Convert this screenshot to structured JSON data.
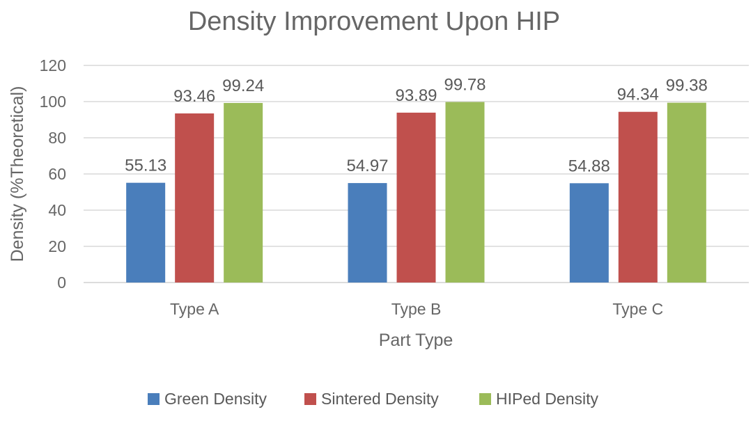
{
  "chart_data": {
    "type": "bar",
    "title": "Density Improvement Upon HIP",
    "xlabel": "Part Type",
    "ylabel": "Density (%Theoretical)",
    "ylim": [
      0,
      120
    ],
    "yticks": [
      0,
      20,
      40,
      60,
      80,
      100,
      120
    ],
    "grid": true,
    "legend_position": "bottom",
    "categories": [
      "Type A",
      "Type B",
      "Type C"
    ],
    "series": [
      {
        "name": "Green Density",
        "color": "#4a7ebb",
        "values": [
          55.13,
          54.97,
          54.88
        ]
      },
      {
        "name": "Sintered Density",
        "color": "#c0504d",
        "values": [
          93.46,
          93.89,
          94.34
        ]
      },
      {
        "name": "HIPed Density",
        "color": "#9bbb59",
        "values": [
          99.24,
          99.78,
          99.38
        ]
      }
    ],
    "data_labels": [
      [
        "55.13",
        "54.97",
        "54.88"
      ],
      [
        "93.46",
        "93.89",
        "94.34"
      ],
      [
        "99.24",
        "99.78",
        "99.38"
      ]
    ]
  }
}
